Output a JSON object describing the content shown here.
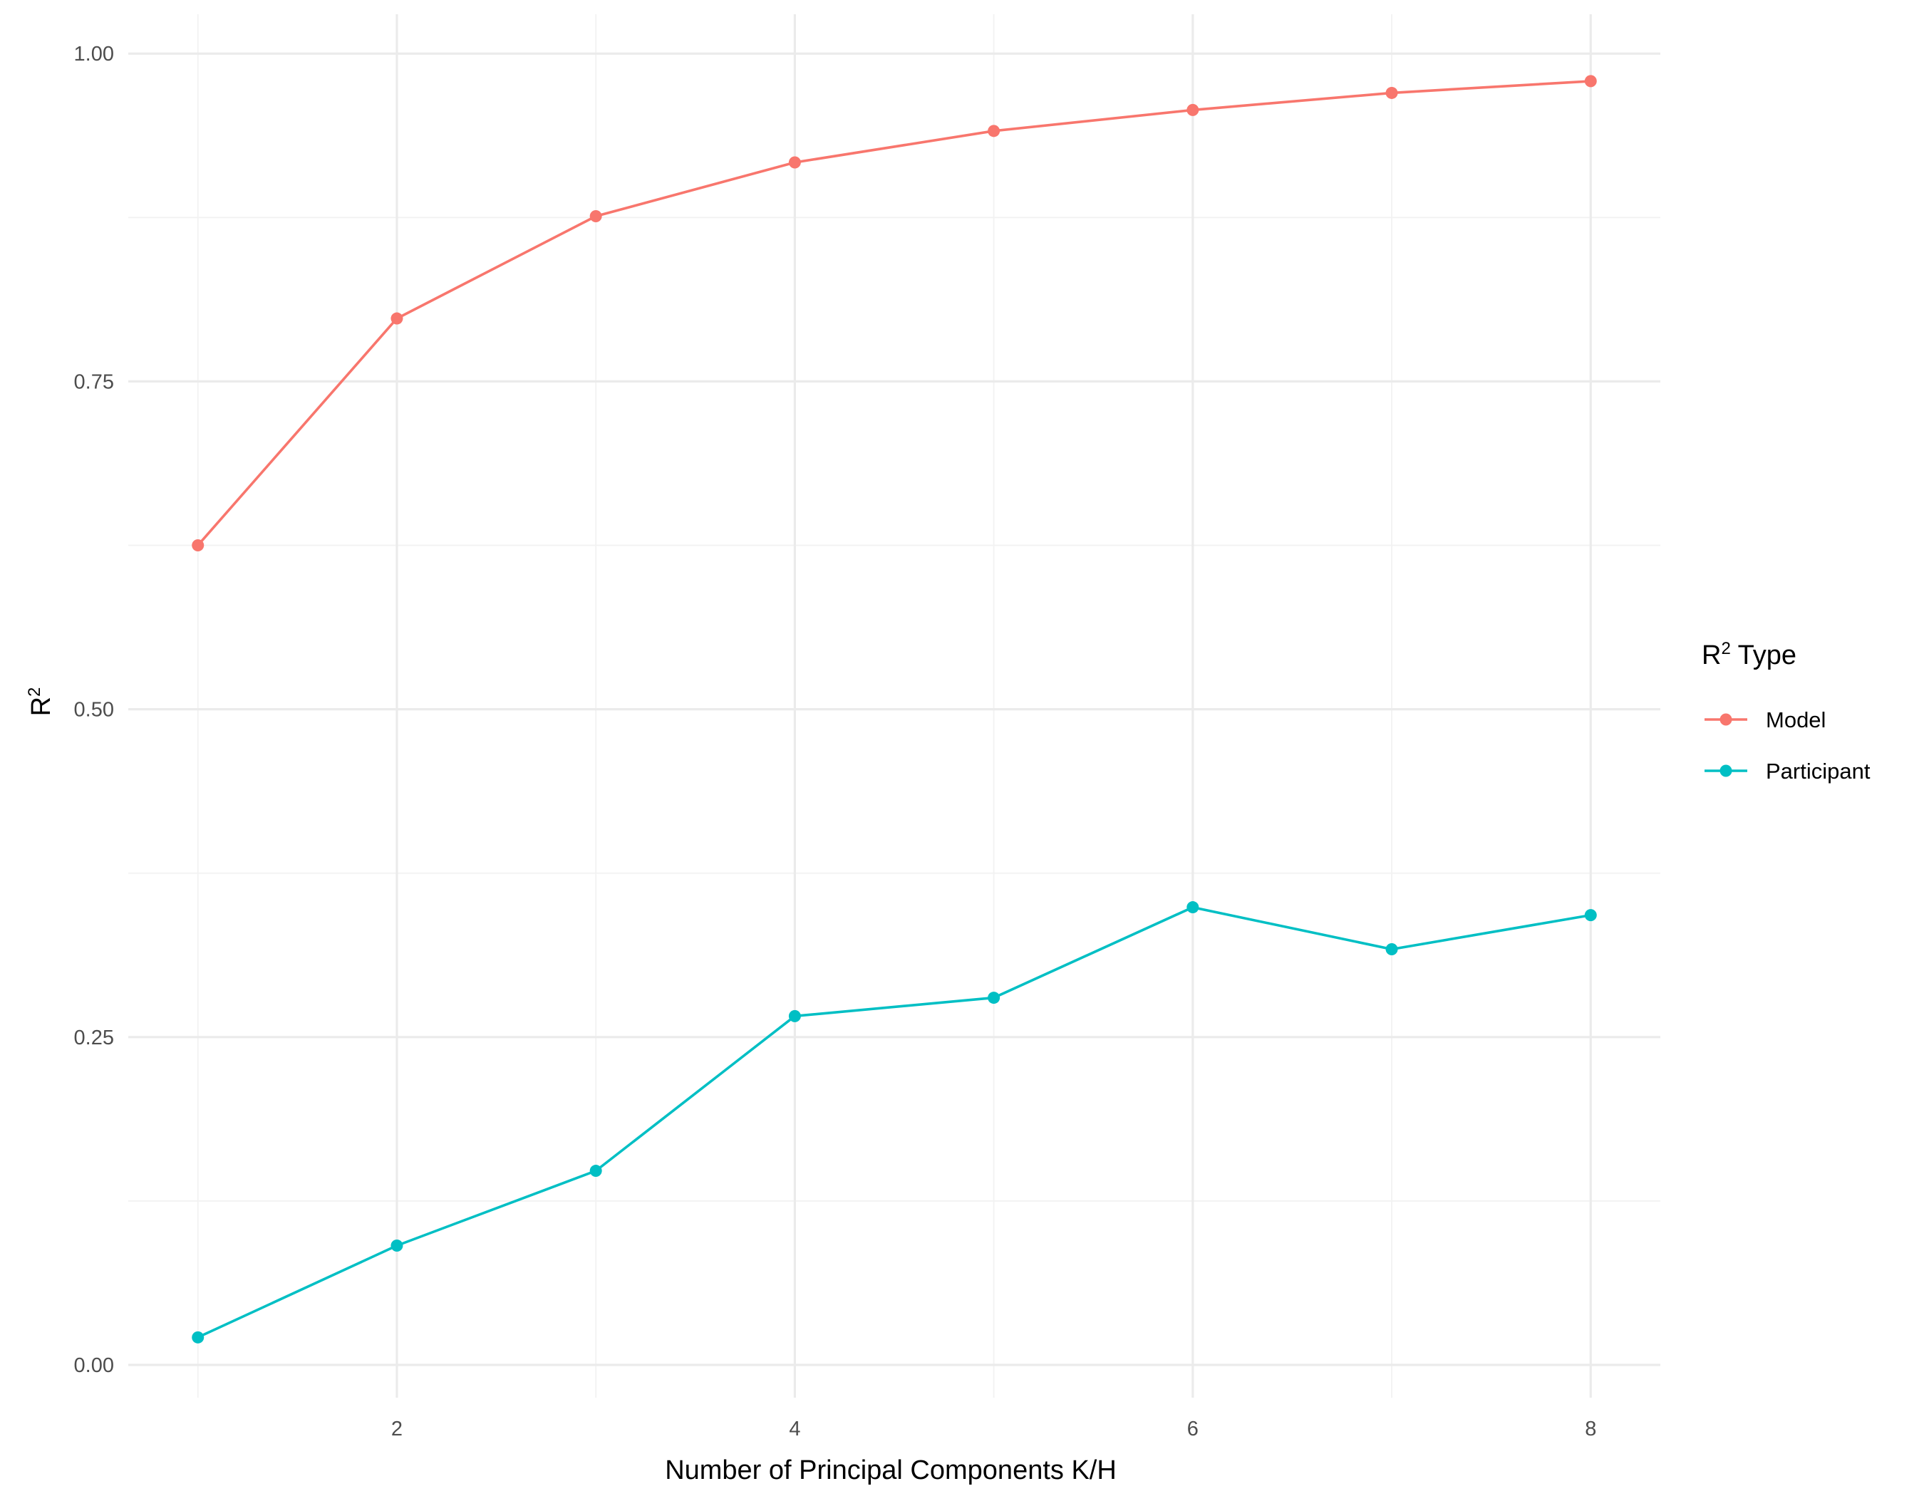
{
  "chart_data": {
    "type": "line",
    "title": "",
    "xlabel": "Number of Principal Components K/H",
    "ylabel": {
      "base": "R",
      "sup": "2"
    },
    "x": [
      1,
      2,
      3,
      4,
      5,
      6,
      7,
      8
    ],
    "xlim": [
      0.65,
      8.35
    ],
    "ylim": [
      -0.025,
      1.03
    ],
    "x_ticks": [
      2,
      4,
      6,
      8
    ],
    "x_tick_labels": [
      "2",
      "4",
      "6",
      "8"
    ],
    "y_ticks": [
      0,
      0.25,
      0.5,
      0.75,
      1.0
    ],
    "y_tick_labels": [
      "0.00",
      "0.25",
      "0.50",
      "0.75",
      "1.00"
    ],
    "grid": true,
    "legend": {
      "title_base": "R",
      "title_sup": "2",
      "title_rest": " Type",
      "position": "right"
    },
    "series": [
      {
        "name": "Model",
        "color": "#F8766D",
        "values": [
          0.625,
          0.798,
          0.876,
          0.917,
          0.941,
          0.957,
          0.97,
          0.979
        ]
      },
      {
        "name": "Participant",
        "color": "#00BFC4",
        "values": [
          0.021,
          0.091,
          0.148,
          0.266,
          0.28,
          0.349,
          0.317,
          0.343
        ]
      }
    ]
  }
}
